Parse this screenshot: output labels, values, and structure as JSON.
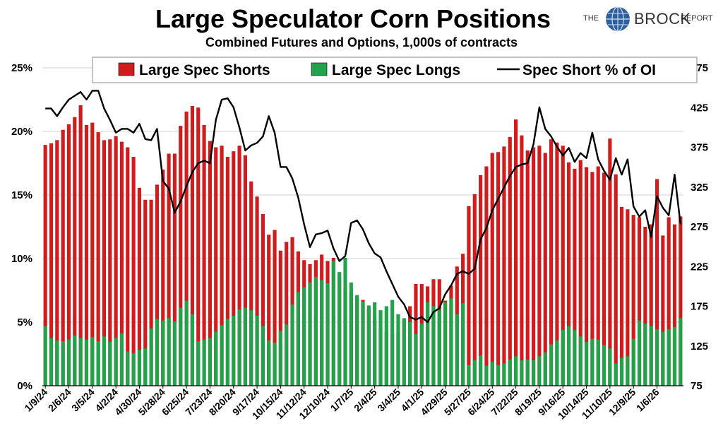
{
  "header": {
    "title": "Large Speculator Corn Positions",
    "subtitle": "Combined Futures and Options, 1,000s of contracts"
  },
  "logo": {
    "the": "THE",
    "brock": "BROCK",
    "report": "REPORT",
    "icon": "globe-icon"
  },
  "colors": {
    "shorts": "#d01c1c",
    "longs": "#22a24a",
    "line": "#000000",
    "grid": "#d0d0d0"
  },
  "chart_data": {
    "type": "bar",
    "legend_placement": "top",
    "grid": true,
    "legend": [
      "Large Spec Shorts",
      "Large Spec Longs",
      "Spec Short % of OI"
    ],
    "left_axis": {
      "ticks": [
        "0%",
        "5%",
        "10%",
        "15%",
        "20%",
        "25%"
      ],
      "ylim": [
        0,
        25
      ]
    },
    "right_axis": {
      "ticks": [
        "75",
        "125",
        "175",
        "225",
        "275",
        "325",
        "375",
        "425",
        "475"
      ],
      "ylim": [
        75,
        475
      ]
    },
    "x_tick_labels": [
      "1/9/24",
      "2/6/24",
      "3/5/24",
      "4/2/24",
      "4/30/24",
      "5/28/24",
      "6/25/24",
      "7/23/24",
      "8/20/24",
      "9/17/24",
      "10/15/24",
      "11/12/24",
      "12/10/24",
      "1/7/25",
      "2/4/25",
      "3/4/25",
      "4/1/25",
      "4/29/25",
      "5/27/25",
      "6/24/25",
      "7/22/25",
      "8/19/25",
      "9/16/25",
      "10/14/25",
      "11/10/25",
      "12/9/25",
      "1/6/26"
    ],
    "series": [
      {
        "name": "Large Spec Shorts",
        "axis": "right",
        "values": [
          378,
          380,
          384,
          397,
          404,
          413,
          428,
          403,
          406,
          394,
          384,
          385,
          389,
          382,
          375,
          363,
          324,
          309,
          309,
          328,
          347,
          367,
          367,
          402,
          420,
          427,
          425,
          403,
          383,
          375,
          377,
          363,
          370,
          377,
          365,
          332,
          313,
          291,
          265,
          271,
          245,
          256,
          262,
          244,
          233,
          228,
          233,
          240,
          232,
          236,
          215,
          198,
          192,
          187,
          183,
          172,
          157,
          148,
          143,
          140,
          142,
          155,
          175,
          203,
          203,
          200,
          209,
          209,
          182,
          201,
          225,
          241,
          301,
          316,
          340,
          351,
          368,
          369,
          376,
          388,
          410,
          390,
          371,
          375,
          377,
          368,
          385,
          381,
          377,
          356,
          348,
          359,
          350,
          344,
          351,
          343,
          386,
          341,
          300,
          297,
          290,
          287,
          275,
          278,
          335,
          264,
          287,
          278,
          288
        ]
      },
      {
        "name": "Large Spec Longs",
        "axis": "right",
        "values": [
          150,
          135,
          132,
          131,
          133,
          138,
          135,
          133,
          136,
          131,
          137,
          130,
          135,
          141,
          118,
          116,
          120,
          122,
          147,
          159,
          157,
          160,
          156,
          173,
          182,
          165,
          131,
          133,
          135,
          143,
          151,
          159,
          163,
          171,
          173,
          170,
          163,
          150,
          132,
          129,
          144,
          152,
          177,
          193,
          199,
          205,
          212,
          208,
          204,
          232,
          218,
          236,
          205,
          189,
          181,
          176,
          180,
          170,
          175,
          183,
          165,
          160,
          155,
          140,
          153,
          180,
          175,
          170,
          180,
          185,
          165,
          179,
          101,
          107,
          113,
          100,
          105,
          101,
          103,
          108,
          112,
          107,
          108,
          107,
          112,
          117,
          127,
          132,
          145,
          150,
          145,
          137,
          130,
          134,
          133,
          126,
          122,
          103,
          110,
          112,
          134,
          157,
          153,
          150,
          146,
          143,
          146,
          149,
          160
        ]
      },
      {
        "name": "Spec Short % of OI",
        "axis": "left",
        "values": [
          21.8,
          21.8,
          21.2,
          21.9,
          22.5,
          22.8,
          23.1,
          22.5,
          23.2,
          23.2,
          21.8,
          20.9,
          19.9,
          20.2,
          20.2,
          19.9,
          20.6,
          19.4,
          19.3,
          20.2,
          16.1,
          15.5,
          13.6,
          14.5,
          15.7,
          16.8,
          17.5,
          17.7,
          17.5,
          20.9,
          22.5,
          22.6,
          21.9,
          20.3,
          18.5,
          18.9,
          19.1,
          19.6,
          21.2,
          19.9,
          17.2,
          17.2,
          16.3,
          14.8,
          12.7,
          10.9,
          11.9,
          12.0,
          12.2,
          10.8,
          9.8,
          10.2,
          12.8,
          13.0,
          12.3,
          11.2,
          10.4,
          10.1,
          9.0,
          8.0,
          7.0,
          6.4,
          5.4,
          5.2,
          5.4,
          5.0,
          5.8,
          6.1,
          7.2,
          7.9,
          8.8,
          9.0,
          8.8,
          9.2,
          11.5,
          12.4,
          13.8,
          14.7,
          15.6,
          16.5,
          17.2,
          17.4,
          17.5,
          19.0,
          21.9,
          20.2,
          19.6,
          18.8,
          18.1,
          18.7,
          17.6,
          18.3,
          17.9,
          19.9,
          17.8,
          16.9,
          16.2,
          17.9,
          16.6,
          17.8,
          14.1,
          13.3,
          13.8,
          11.7,
          14.9,
          14.0,
          13.4,
          16.6,
          12.7
        ]
      }
    ]
  }
}
